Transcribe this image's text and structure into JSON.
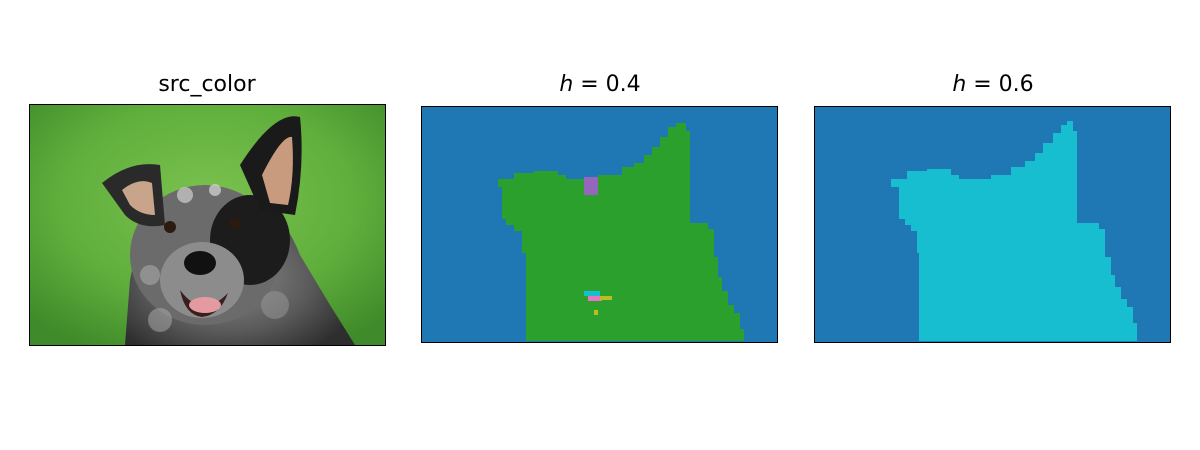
{
  "panels": [
    {
      "id": "source",
      "title": "src_color"
    },
    {
      "id": "seg1",
      "title_var": "h",
      "title_rest": " = 0.4"
    },
    {
      "id": "seg2",
      "title_var": "h",
      "title_rest": " = 0.6"
    }
  ],
  "colors": {
    "grass": "#5fae3c",
    "background": "#1f77b4",
    "dog_region_04": "#2ca02c",
    "dog_region_06": "#17becf",
    "small_purple": "#9467bd",
    "small_pink": "#e377c2",
    "small_yellow": "#bcbd22",
    "small_cyan": "#17becf"
  },
  "icons": [
    "dog-photo-image",
    "segmentation-map"
  ]
}
